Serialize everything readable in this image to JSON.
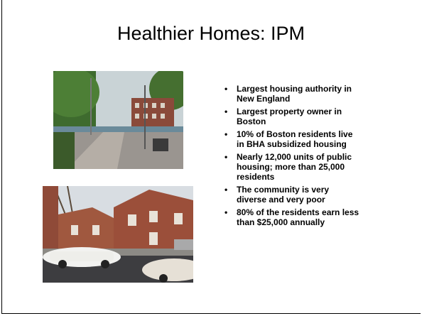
{
  "slide": {
    "title": "Healthier Homes: IPM",
    "bullets": [
      "Largest housing authority in New England",
      "Largest property owner in Boston",
      "10% of Boston residents live in BHA subsidized housing",
      "Nearly 12,000 units of public housing; more than 25,000 residents",
      "The community is very diverse and very poor",
      "80% of the residents earn less than $25,000 annually"
    ]
  }
}
